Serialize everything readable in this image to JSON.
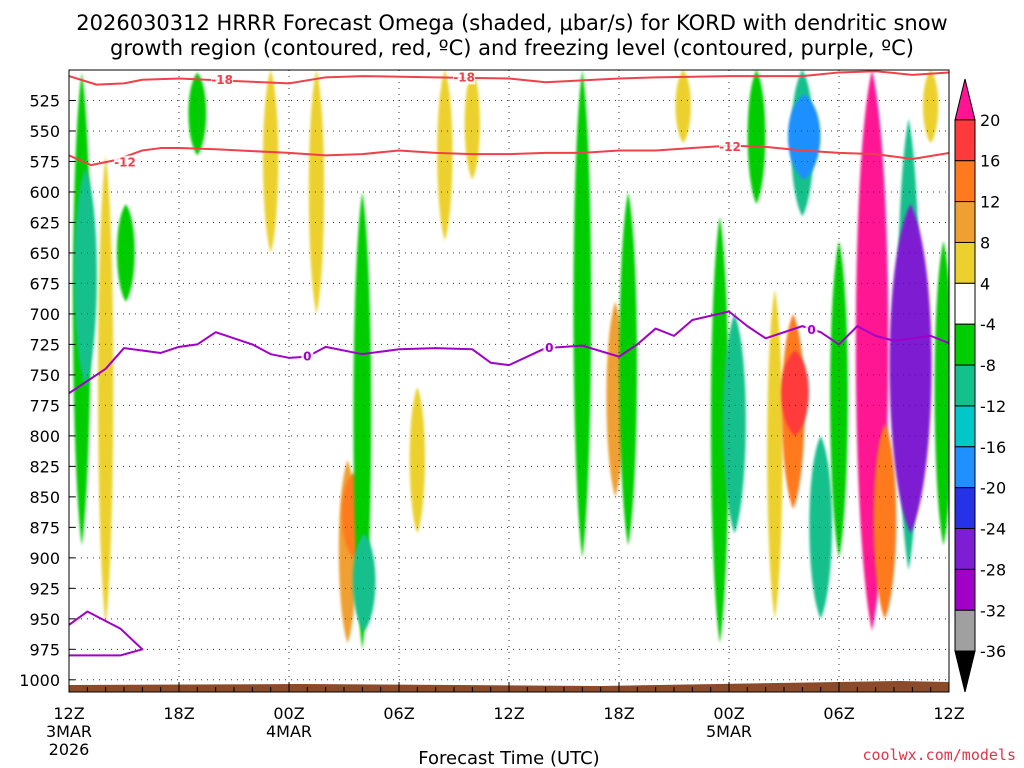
{
  "title": {
    "line1": "2026030312 HRRR Forecast Omega (shaded, μbar/s) for KORD with dendritic snow",
    "line2": "growth region (contoured, red, ºC) and freezing level (contoured, purple, ºC)"
  },
  "credit": "coolwx.com/models",
  "chart_data": {
    "type": "heatmap",
    "title": "2026030312 HRRR Forecast Omega (shaded, μbar/s) for KORD with dendritic snow growth region (contoured, red, ºC) and freezing level (contoured, purple, ºC)",
    "xlabel": "Forecast Time (UTC)",
    "ylabel": "",
    "x_range_hours": [
      0,
      48
    ],
    "x_ticks": [
      {
        "hour": 0,
        "label": "12Z",
        "sub1": "3MAR",
        "sub2": "2026"
      },
      {
        "hour": 6,
        "label": "18Z",
        "sub1": "",
        "sub2": ""
      },
      {
        "hour": 12,
        "label": "00Z",
        "sub1": "4MAR",
        "sub2": ""
      },
      {
        "hour": 18,
        "label": "06Z",
        "sub1": "",
        "sub2": ""
      },
      {
        "hour": 24,
        "label": "12Z",
        "sub1": "",
        "sub2": ""
      },
      {
        "hour": 30,
        "label": "18Z",
        "sub1": "",
        "sub2": ""
      },
      {
        "hour": 36,
        "label": "00Z",
        "sub1": "5MAR",
        "sub2": ""
      },
      {
        "hour": 42,
        "label": "06Z",
        "sub1": "",
        "sub2": ""
      },
      {
        "hour": 48,
        "label": "12Z",
        "sub1": "",
        "sub2": ""
      }
    ],
    "y_range_mb": [
      500,
      1010
    ],
    "y_ticks": [
      525,
      550,
      575,
      600,
      625,
      650,
      675,
      700,
      725,
      750,
      775,
      800,
      825,
      850,
      875,
      900,
      925,
      950,
      975,
      1000
    ],
    "colorbar": {
      "levels": [
        -36,
        -32,
        -28,
        -24,
        -20,
        -16,
        -12,
        -8,
        -4,
        4,
        8,
        12,
        16,
        20
      ],
      "labels": [
        "20",
        "16",
        "12",
        "8",
        "4",
        "-4",
        "-8",
        "-12",
        "-16",
        "-20",
        "-24",
        "-28",
        "-32",
        "-36"
      ],
      "colors": [
        "#ff1493",
        "#ff3a3a",
        "#ff7a1e",
        "#f0a030",
        "#ecd12e",
        "#ffffff",
        "#00cd00",
        "#14c08c",
        "#00c8c8",
        "#1e90ff",
        "#2632e6",
        "#7e1ed2",
        "#a000c8",
        "#a0a0a0",
        "#000000"
      ]
    },
    "omega_cells": [
      {
        "t": 0.7,
        "p0": 502,
        "p1": 890,
        "v": -8
      },
      {
        "t": 0.9,
        "p0": 580,
        "p1": 760,
        "v": -12
      },
      {
        "t": 2.0,
        "p0": 570,
        "p1": 955,
        "v": 6
      },
      {
        "t": 3.1,
        "p0": 610,
        "p1": 690,
        "v": -8
      },
      {
        "t": 7.0,
        "p0": 502,
        "p1": 570,
        "v": -8
      },
      {
        "t": 11.0,
        "p0": 500,
        "p1": 650,
        "v": 6
      },
      {
        "t": 13.5,
        "p0": 500,
        "p1": 700,
        "v": 6
      },
      {
        "t": 15.2,
        "p0": 820,
        "p1": 970,
        "v": 8
      },
      {
        "t": 15.5,
        "p0": 830,
        "p1": 900,
        "v": 12
      },
      {
        "t": 16.0,
        "p0": 600,
        "p1": 975,
        "v": -8
      },
      {
        "t": 16.1,
        "p0": 880,
        "p1": 960,
        "v": -12
      },
      {
        "t": 19.0,
        "p0": 760,
        "p1": 880,
        "v": 6
      },
      {
        "t": 20.5,
        "p0": 500,
        "p1": 640,
        "v": 6
      },
      {
        "t": 22.0,
        "p0": 500,
        "p1": 590,
        "v": 6
      },
      {
        "t": 28.0,
        "p0": 500,
        "p1": 900,
        "v": -8
      },
      {
        "t": 29.8,
        "p0": 690,
        "p1": 850,
        "v": 8
      },
      {
        "t": 30.5,
        "p0": 600,
        "p1": 890,
        "v": -8
      },
      {
        "t": 33.5,
        "p0": 500,
        "p1": 560,
        "v": 6
      },
      {
        "t": 35.5,
        "p0": 620,
        "p1": 970,
        "v": -8
      },
      {
        "t": 36.3,
        "p0": 700,
        "p1": 880,
        "v": -12
      },
      {
        "t": 37.5,
        "p0": 500,
        "p1": 610,
        "v": -8
      },
      {
        "t": 38.5,
        "p0": 680,
        "p1": 950,
        "v": 6
      },
      {
        "t": 39.5,
        "p0": 700,
        "p1": 860,
        "v": 12
      },
      {
        "t": 39.6,
        "p0": 730,
        "p1": 800,
        "v": 16
      },
      {
        "t": 40.0,
        "p0": 500,
        "p1": 620,
        "v": -12
      },
      {
        "t": 40.1,
        "p0": 520,
        "p1": 590,
        "v": -20
      },
      {
        "t": 41.0,
        "p0": 800,
        "p1": 950,
        "v": -12
      },
      {
        "t": 42.0,
        "p0": 640,
        "p1": 900,
        "v": -8
      },
      {
        "t": 43.8,
        "p0": 500,
        "p1": 960,
        "v": 20
      },
      {
        "t": 44.5,
        "p0": 790,
        "p1": 950,
        "v": 12
      },
      {
        "t": 45.8,
        "p0": 540,
        "p1": 910,
        "v": -12
      },
      {
        "t": 45.9,
        "p0": 610,
        "p1": 880,
        "v": -28
      },
      {
        "t": 47.0,
        "p0": 500,
        "p1": 560,
        "v": 6
      },
      {
        "t": 47.7,
        "p0": 640,
        "p1": 890,
        "v": -8
      }
    ],
    "red_contours": [
      {
        "label": "-18",
        "t": [
          0,
          1.5,
          3,
          4,
          6,
          9,
          12,
          14,
          16,
          20,
          24,
          26,
          30,
          32,
          36,
          40,
          42,
          44,
          46,
          48
        ],
        "p": [
          505,
          512,
          511,
          508,
          507,
          509,
          511,
          506,
          505,
          506,
          507,
          510,
          507,
          506,
          505,
          505,
          502,
          501,
          504,
          502
        ]
      },
      {
        "label": "-12",
        "t": [
          0,
          1.2,
          2.5,
          4,
          5,
          6,
          8,
          12,
          14,
          16,
          18,
          20,
          22,
          24,
          26,
          28,
          30,
          32,
          34,
          36,
          38,
          40,
          42,
          44,
          46,
          48
        ],
        "p": [
          570,
          578,
          574,
          566,
          564,
          564,
          565,
          568,
          570,
          569,
          566,
          568,
          569,
          569,
          568,
          568,
          566,
          566,
          564,
          562,
          563,
          566,
          568,
          569,
          573,
          568
        ]
      }
    ],
    "freezing_level": [
      {
        "label": "0",
        "t": [
          0,
          1,
          2,
          3,
          4,
          5,
          6,
          7,
          8,
          10,
          11,
          12,
          13,
          14,
          16,
          18,
          20,
          22,
          23,
          24,
          26,
          28,
          30,
          31,
          32,
          33,
          34,
          36,
          37,
          38,
          40,
          41,
          42,
          43,
          44,
          45,
          46,
          47,
          48
        ],
        "p": [
          765,
          755,
          745,
          728,
          730,
          732,
          727,
          725,
          715,
          725,
          733,
          736,
          735,
          727,
          733,
          729,
          728,
          729,
          740,
          742,
          728,
          726,
          735,
          725,
          712,
          718,
          705,
          698,
          710,
          720,
          710,
          715,
          725,
          710,
          718,
          722,
          720,
          718,
          724
        ]
      },
      {
        "label": "",
        "t": [
          0,
          1,
          2.8,
          4,
          2.8,
          1,
          0
        ],
        "p": [
          955,
          944,
          958,
          975,
          980,
          980,
          980
        ]
      }
    ],
    "terrain_mb": 1010
  }
}
